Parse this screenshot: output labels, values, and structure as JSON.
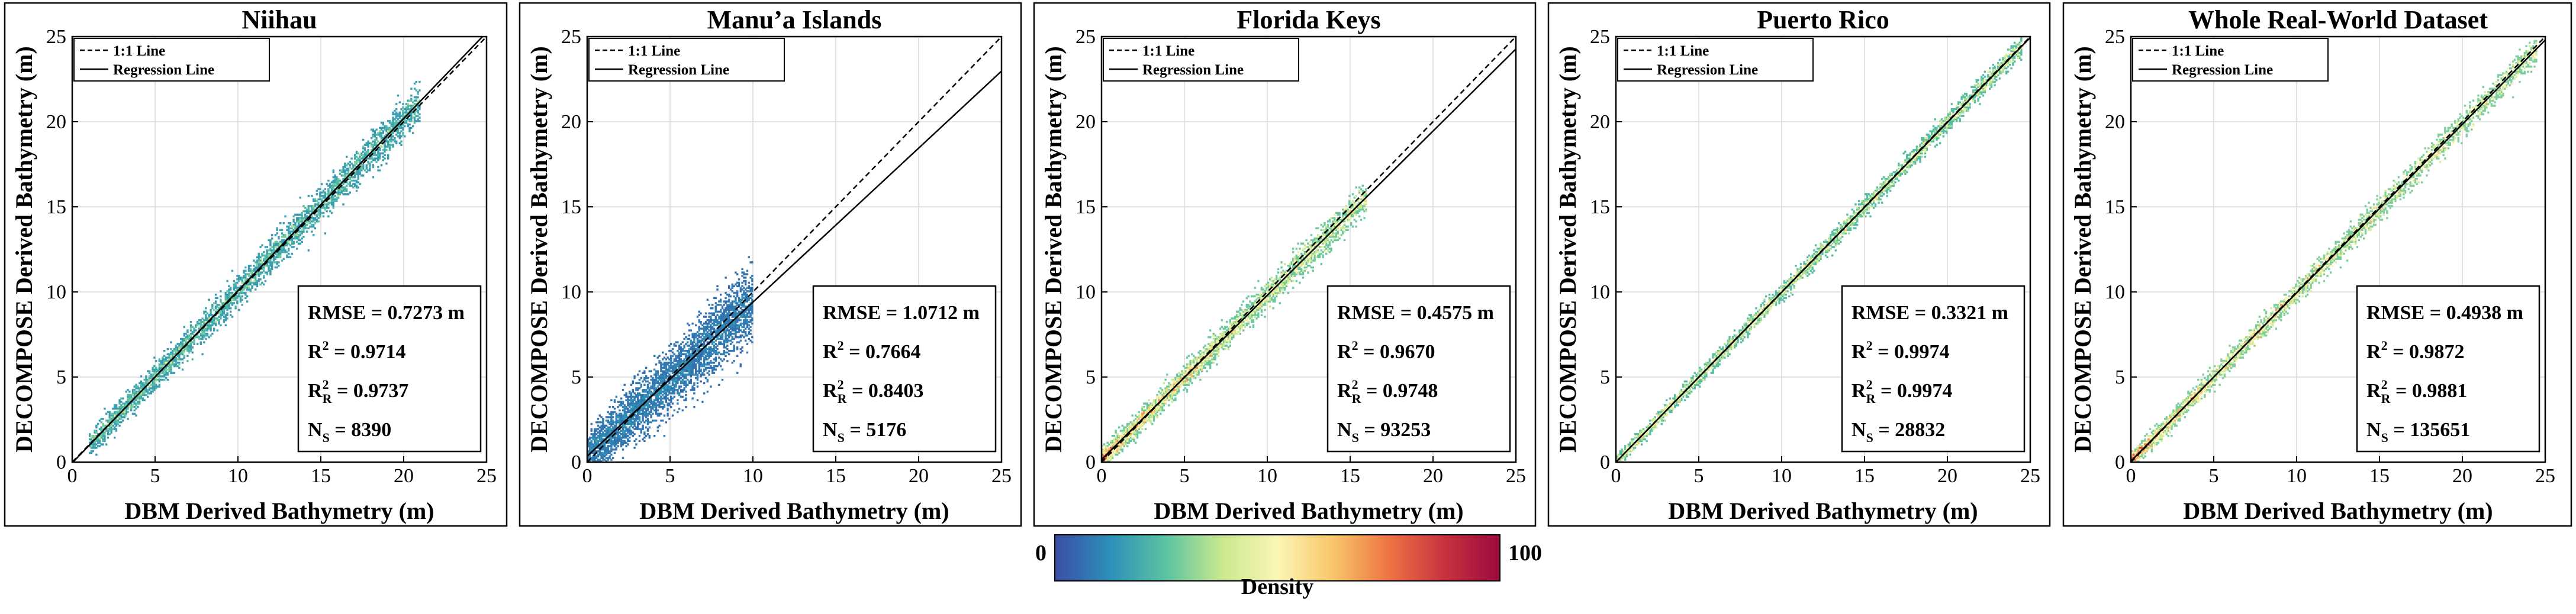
{
  "figure": {
    "colorbar": {
      "label": "Density",
      "min_label": "0",
      "max_label": "100",
      "colors": [
        "#3b4da6",
        "#2d90b8",
        "#5cc3a2",
        "#c9e98e",
        "#fbf6b5",
        "#f8c66a",
        "#ee7444",
        "#c8323f",
        "#9b0a3d"
      ]
    },
    "legend_labels": {
      "identity": "1:1 Line",
      "regression": "Regression Line"
    },
    "stat_labels": {
      "rmse": "RMSE = ",
      "r2": "R",
      "r2_sup": "2",
      "r2r_sub": "R",
      "ns": "N",
      "ns_sub": "S",
      "equals": " = ",
      "unit": " m"
    }
  },
  "chart_data": [
    {
      "type": "scatter",
      "subtype": "density-scatter",
      "title": "Niihau",
      "xlabel": "DBM Derived Bathymetry (m)",
      "ylabel": "DECOMPOSE Derived Bathymetry (m)",
      "xlim": [
        0,
        25
      ],
      "ylim": [
        0,
        25
      ],
      "xticks": [
        0,
        5,
        10,
        15,
        20,
        25
      ],
      "yticks": [
        0,
        5,
        10,
        15,
        20,
        25
      ],
      "grid": true,
      "legend": "top-left",
      "stats_position": "bottom-right",
      "x_range": [
        1,
        21
      ],
      "spread": 0.55,
      "peak_density": 45,
      "regression": {
        "slope": 1.012,
        "intercept": -0.05
      },
      "stats": {
        "rmse": "0.7273",
        "r2": "0.9714",
        "r2_r": "0.9737",
        "n_s": "8390"
      }
    },
    {
      "type": "scatter",
      "subtype": "density-scatter",
      "title": "Manu’a Islands",
      "xlabel": "DBM Derived Bathymetry (m)",
      "ylabel": "DECOMPOSE Derived Bathymetry (m)",
      "xlim": [
        0,
        25
      ],
      "ylim": [
        0,
        25
      ],
      "xticks": [
        0,
        5,
        10,
        15,
        20,
        25
      ],
      "yticks": [
        0,
        5,
        10,
        15,
        20,
        25
      ],
      "grid": true,
      "legend": "top-left",
      "stats_position": "bottom-right",
      "x_range": [
        0,
        10
      ],
      "spread": 1.1,
      "peak_density": 18,
      "regression": {
        "slope": 0.905,
        "intercept": 0.35
      },
      "stats": {
        "rmse": "1.0712",
        "r2": "0.7664",
        "r2_r": "0.8403",
        "n_s": "5176"
      }
    },
    {
      "type": "scatter",
      "subtype": "density-scatter",
      "title": "Florida Keys",
      "xlabel": "DBM Derived Bathymetry (m)",
      "ylabel": "DECOMPOSE Derived Bathymetry (m)",
      "xlim": [
        0,
        25
      ],
      "ylim": [
        0,
        25
      ],
      "xticks": [
        0,
        5,
        10,
        15,
        20,
        25
      ],
      "yticks": [
        0,
        5,
        10,
        15,
        20,
        25
      ],
      "grid": true,
      "legend": "top-left",
      "stats_position": "bottom-right",
      "x_range": [
        0,
        16
      ],
      "spread": 0.45,
      "peak_density": 100,
      "regression": {
        "slope": 0.965,
        "intercept": 0.15
      },
      "stats": {
        "rmse": "0.4575",
        "r2": "0.9670",
        "r2_r": "0.9748",
        "n_s": "93253"
      }
    },
    {
      "type": "scatter",
      "subtype": "density-scatter",
      "title": "Puerto Rico",
      "xlabel": "DBM Derived Bathymetry (m)",
      "ylabel": "DECOMPOSE Derived Bathymetry (m)",
      "xlim": [
        0,
        25
      ],
      "ylim": [
        0,
        25
      ],
      "xticks": [
        0,
        5,
        10,
        15,
        20,
        25
      ],
      "yticks": [
        0,
        5,
        10,
        15,
        20,
        25
      ],
      "grid": true,
      "legend": "top-left",
      "stats_position": "bottom-right",
      "x_range": [
        0,
        24.5
      ],
      "spread": 0.3,
      "peak_density": 75,
      "regression": {
        "slope": 0.998,
        "intercept": 0.0
      },
      "stats": {
        "rmse": "0.3321",
        "r2": "0.9974",
        "r2_r": "0.9974",
        "n_s": "28832"
      }
    },
    {
      "type": "scatter",
      "subtype": "density-scatter",
      "title": "Whole Real-World Dataset",
      "xlabel": "DBM Derived Bathymetry (m)",
      "ylabel": "DECOMPOSE Derived Bathymetry (m)",
      "xlim": [
        0,
        25
      ],
      "ylim": [
        0,
        25
      ],
      "xticks": [
        0,
        5,
        10,
        15,
        20,
        25
      ],
      "yticks": [
        0,
        5,
        10,
        15,
        20,
        25
      ],
      "grid": true,
      "legend": "top-left",
      "stats_position": "bottom-right",
      "x_range": [
        0,
        24.5
      ],
      "spread": 0.4,
      "peak_density": 100,
      "regression": {
        "slope": 0.99,
        "intercept": 0.05
      },
      "stats": {
        "rmse": "0.4938",
        "r2": "0.9872",
        "r2_r": "0.9881",
        "n_s": "135651"
      }
    }
  ]
}
